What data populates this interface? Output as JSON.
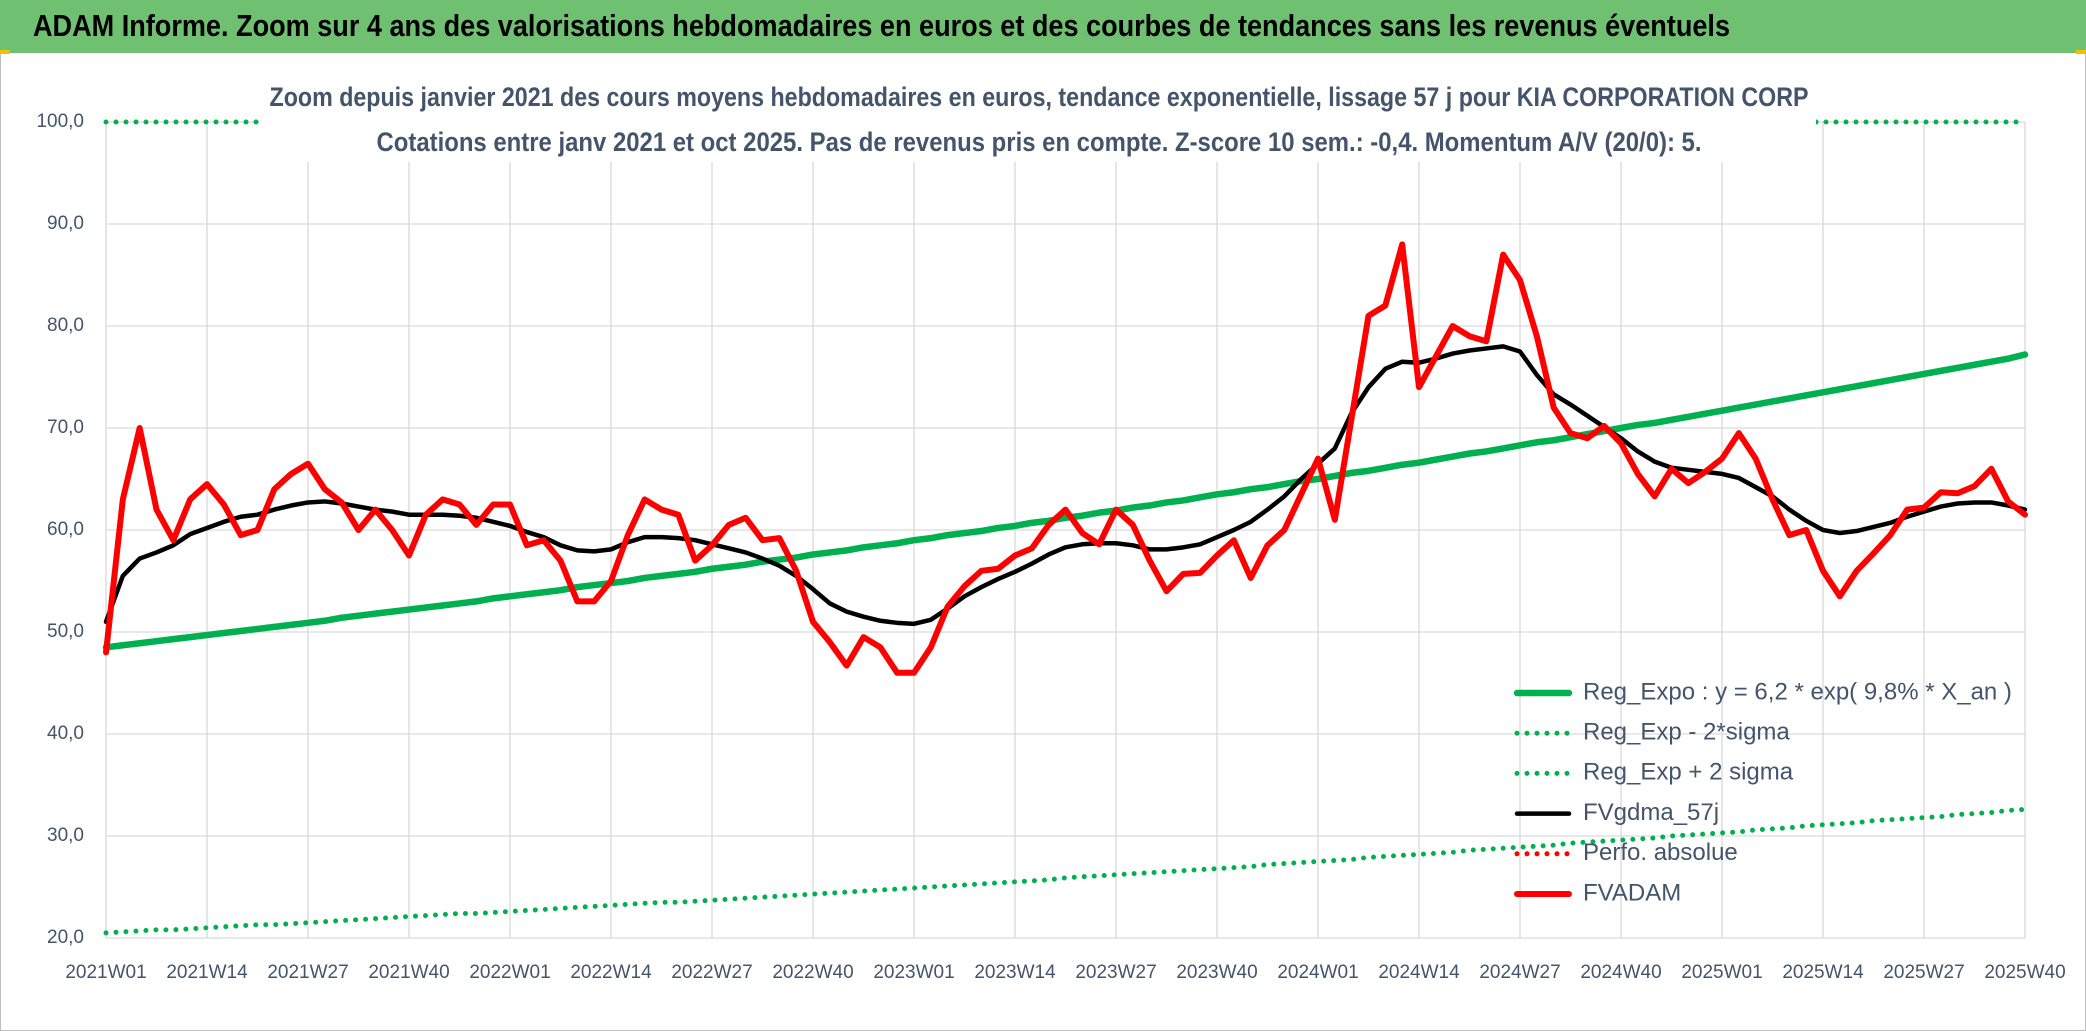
{
  "chart_data": {
    "type": "line",
    "title": "ADAM Informe. Zoom sur 4 ans des valorisations hebdomadaires en euros et des courbes de tendances sans les revenus éventuels",
    "subtitle": [
      "Zoom depuis janvier 2021 des cours moyens hebdomadaires en euros, tendance exponentielle, lissage 57 j pour KIA CORPORATION CORP",
      "Cotations entre janv 2021 et oct 2025. Pas de revenus pris en compte. Z-score 10 sem.: -0,4. Momentum A/V (20/0): 5."
    ],
    "categories": [
      "2021W01",
      null,
      null,
      null,
      null,
      null,
      "2021W14",
      null,
      null,
      null,
      null,
      null,
      "2021W27",
      null,
      null,
      null,
      null,
      null,
      "2021W40",
      null,
      null,
      null,
      null,
      null,
      "2022W01",
      null,
      null,
      null,
      null,
      null,
      "2022W14",
      null,
      null,
      null,
      null,
      null,
      "2022W27",
      null,
      null,
      null,
      null,
      null,
      "2022W40",
      null,
      null,
      null,
      null,
      null,
      "2023W01",
      null,
      null,
      null,
      null,
      null,
      "2023W14",
      null,
      null,
      null,
      null,
      null,
      "2023W27",
      null,
      null,
      null,
      null,
      null,
      "2023W40",
      null,
      null,
      null,
      null,
      null,
      "2024W01",
      null,
      null,
      null,
      null,
      null,
      "2024W14",
      null,
      null,
      null,
      null,
      null,
      "2024W27",
      null,
      null,
      null,
      null,
      null,
      "2024W40",
      null,
      null,
      null,
      null,
      null,
      "2025W01",
      null,
      null,
      null,
      null,
      null,
      "2025W14",
      null,
      null,
      null,
      null,
      null,
      "2025W27",
      null,
      null,
      null,
      null,
      null,
      "2025W40"
    ],
    "ylim": [
      20,
      100
    ],
    "yticks": [
      {
        "value": 20,
        "label": "20,0"
      },
      {
        "value": 30,
        "label": "30,0"
      },
      {
        "value": 40,
        "label": "40,0"
      },
      {
        "value": 50,
        "label": "50,0"
      },
      {
        "value": 60,
        "label": "60,0"
      },
      {
        "value": 70,
        "label": "70,0"
      },
      {
        "value": 80,
        "label": "80,0"
      },
      {
        "value": 90,
        "label": "90,0"
      },
      {
        "value": 100,
        "label": "100,0"
      }
    ],
    "grid": true,
    "legend": "lower right",
    "series": [
      {
        "name": "Reg_Expo : y = 6,2 * exp( 9,8% *  X_an )",
        "color": "#00b050",
        "line_style": "solid",
        "values": [
          48.5,
          48.7,
          48.9,
          49.1,
          49.3,
          49.5,
          49.7,
          49.9,
          50.1,
          50.3,
          50.5,
          50.7,
          50.9,
          51.1,
          51.4,
          51.6,
          51.8,
          52.0,
          52.2,
          52.4,
          52.6,
          52.8,
          53.0,
          53.3,
          53.5,
          53.7,
          53.9,
          54.1,
          54.4,
          54.6,
          54.8,
          55.0,
          55.3,
          55.5,
          55.7,
          55.9,
          56.2,
          56.4,
          56.6,
          56.9,
          57.1,
          57.3,
          57.6,
          57.8,
          58.0,
          58.3,
          58.5,
          58.7,
          59.0,
          59.2,
          59.5,
          59.7,
          59.9,
          60.2,
          60.4,
          60.7,
          60.9,
          61.2,
          61.4,
          61.7,
          61.9,
          62.2,
          62.4,
          62.7,
          62.9,
          63.2,
          63.5,
          63.7,
          64.0,
          64.2,
          64.5,
          64.8,
          65.0,
          65.3,
          65.6,
          65.8,
          66.1,
          66.4,
          66.6,
          66.9,
          67.2,
          67.5,
          67.7,
          68.0,
          68.3,
          68.6,
          68.8,
          69.1,
          69.4,
          69.7,
          70.0,
          70.3,
          70.5,
          70.8,
          71.1,
          71.4,
          71.7,
          72.0,
          72.3,
          72.6,
          72.9,
          73.2,
          73.5,
          73.8,
          74.1,
          74.4,
          74.7,
          75.0,
          75.3,
          75.6,
          75.9,
          76.2,
          76.5,
          76.8,
          77.2
        ]
      },
      {
        "name": "Reg_Exp - 2*sigma",
        "color": "#00b050",
        "line_style": "dotted",
        "values": [
          20.5,
          20.6,
          20.7,
          20.8,
          20.8,
          20.9,
          21.0,
          21.1,
          21.2,
          21.3,
          21.3,
          21.4,
          21.5,
          21.6,
          21.7,
          21.8,
          21.9,
          22.0,
          22.1,
          22.2,
          22.3,
          22.4,
          22.4,
          22.5,
          22.6,
          22.7,
          22.8,
          22.9,
          23.0,
          23.1,
          23.2,
          23.3,
          23.4,
          23.5,
          23.5,
          23.6,
          23.7,
          23.8,
          23.9,
          24.0,
          24.1,
          24.2,
          24.3,
          24.4,
          24.5,
          24.6,
          24.7,
          24.8,
          24.9,
          25.0,
          25.1,
          25.2,
          25.3,
          25.4,
          25.5,
          25.6,
          25.7,
          25.9,
          26.0,
          26.1,
          26.2,
          26.3,
          26.4,
          26.5,
          26.6,
          26.7,
          26.8,
          26.9,
          27.0,
          27.2,
          27.3,
          27.4,
          27.5,
          27.6,
          27.7,
          27.9,
          28.0,
          28.1,
          28.2,
          28.3,
          28.4,
          28.6,
          28.7,
          28.8,
          28.9,
          29.0,
          29.1,
          29.3,
          29.4,
          29.5,
          29.6,
          29.7,
          29.8,
          30.0,
          30.1,
          30.2,
          30.3,
          30.4,
          30.6,
          30.7,
          30.8,
          31.0,
          31.1,
          31.2,
          31.3,
          31.5,
          31.6,
          31.7,
          31.8,
          31.9,
          32.1,
          32.2,
          32.3,
          32.5,
          32.6
        ]
      },
      {
        "name": "Reg_Exp + 2 sigma",
        "color": "#00b050",
        "line_style": "dotted",
        "values": [
          100,
          100,
          100,
          100,
          100,
          100,
          100,
          100,
          100,
          100,
          100,
          100,
          100,
          100,
          100,
          100,
          100,
          100,
          100,
          100,
          100,
          100,
          100,
          100,
          100,
          100,
          100,
          100,
          100,
          100,
          100,
          100,
          100,
          100,
          100,
          100,
          100,
          100,
          100,
          100,
          100,
          100,
          100,
          100,
          100,
          100,
          100,
          100,
          100,
          100,
          100,
          100,
          100,
          100,
          100,
          100,
          100,
          100,
          100,
          100,
          100,
          100,
          100,
          100,
          100,
          100,
          100,
          100,
          100,
          100,
          100,
          100,
          100,
          100,
          100,
          100,
          100,
          100,
          100,
          100,
          100,
          100,
          100,
          100,
          100,
          100,
          100,
          100,
          100,
          100,
          100,
          100,
          100,
          100,
          100,
          100,
          100,
          100,
          100,
          100,
          100,
          100,
          100,
          100,
          100,
          100,
          100,
          100,
          100,
          100,
          100,
          100,
          100,
          100,
          100
        ]
      },
      {
        "name": "FVgdma_57j",
        "color": "#000000",
        "line_style": "solid",
        "values": [
          51,
          55.5,
          57.2,
          57.8,
          58.5,
          59.6,
          60.2,
          60.8,
          61.3,
          61.5,
          62,
          62.4,
          62.7,
          62.8,
          62.6,
          62.3,
          62,
          61.8,
          61.5,
          61.5,
          61.5,
          61.4,
          61.2,
          60.8,
          60.4,
          59.8,
          59.3,
          58.5,
          58,
          57.9,
          58.1,
          58.8,
          59.3,
          59.3,
          59.2,
          59,
          58.6,
          58.2,
          57.8,
          57.2,
          56.5,
          55.5,
          54.2,
          52.8,
          52,
          51.5,
          51.1,
          50.9,
          50.8,
          51.2,
          52.3,
          53.5,
          54.4,
          55.2,
          55.9,
          56.7,
          57.6,
          58.3,
          58.6,
          58.7,
          58.7,
          58.5,
          58.1,
          58.1,
          58.3,
          58.6,
          59.3,
          60,
          60.8,
          62,
          63.3,
          65,
          66.5,
          68,
          71.5,
          74,
          75.8,
          76.5,
          76.4,
          76.8,
          77.3,
          77.6,
          77.8,
          78,
          77.5,
          75.2,
          73.3,
          72.3,
          71.2,
          70.1,
          69,
          67.7,
          66.7,
          66.1,
          65.9,
          65.7,
          65.5,
          65.1,
          64.2,
          63.3,
          62,
          60.9,
          60,
          59.7,
          59.9,
          60.3,
          60.7,
          61.3,
          61.8,
          62.3,
          62.6,
          62.7,
          62.7,
          62.4,
          62
        ]
      },
      {
        "name": "Perfo. absolue",
        "color": "#ff0000",
        "line_style": "dotted",
        "values": [
          null,
          null,
          null,
          null,
          null,
          null,
          null,
          null,
          null,
          null,
          null,
          null,
          null,
          null,
          null,
          null,
          null,
          null,
          null,
          null,
          null,
          null,
          null,
          null,
          null,
          null,
          null,
          null,
          null,
          null,
          null,
          null,
          null,
          null,
          null,
          null,
          null,
          null,
          null,
          null,
          null,
          null,
          null,
          null,
          null,
          null,
          null,
          null,
          null,
          null,
          null,
          null,
          null,
          null,
          null,
          null,
          null,
          null,
          null,
          null,
          null,
          null,
          null,
          null,
          null,
          null,
          null,
          null,
          null,
          null,
          null,
          null,
          null,
          null,
          null,
          null,
          null,
          null,
          null,
          null,
          null,
          null,
          null,
          null,
          null,
          null,
          null,
          null,
          null,
          null,
          null,
          null,
          null,
          null,
          null,
          null,
          null,
          null,
          null,
          null,
          null,
          null,
          null,
          null,
          null,
          null,
          null,
          null,
          null,
          null,
          null,
          null,
          null,
          null,
          null
        ]
      },
      {
        "name": "FVADAM",
        "color": "#ff0000",
        "line_style": "solid",
        "values": [
          48,
          63,
          70,
          62,
          59,
          63,
          64.5,
          62.5,
          59.5,
          60,
          64,
          65.5,
          66.5,
          64,
          62.7,
          60,
          62,
          60,
          57.5,
          61.5,
          63,
          62.5,
          60.5,
          62.5,
          62.5,
          58.5,
          59,
          57,
          53,
          53,
          55,
          59.5,
          63,
          62,
          61.5,
          57,
          58.5,
          60.5,
          61.2,
          59,
          59.2,
          56,
          51,
          49,
          46.7,
          49.5,
          48.5,
          46,
          46,
          48.5,
          52.5,
          54.5,
          56,
          56.2,
          57.5,
          58.2,
          60.5,
          62,
          59.7,
          58.6,
          62,
          60.5,
          57,
          54,
          55.7,
          55.8,
          57.5,
          59,
          55.3,
          58.5,
          60,
          63.5,
          67,
          61,
          71,
          81,
          82,
          88,
          74,
          77,
          80,
          79,
          78.5,
          87,
          84.5,
          79,
          72,
          69.5,
          69,
          70.2,
          68.5,
          65.5,
          63.3,
          66,
          64.6,
          65.7,
          67,
          69.5,
          67,
          63,
          59.5,
          60,
          56,
          53.5,
          56,
          57.7,
          59.5,
          62,
          62.2,
          63.7,
          63.6,
          64.3,
          66,
          62.8,
          61.5
        ]
      }
    ]
  }
}
